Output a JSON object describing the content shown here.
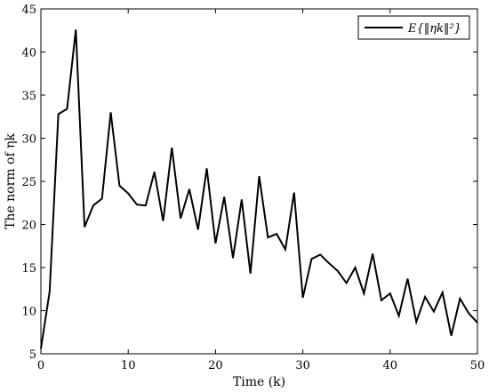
{
  "chart_data": {
    "type": "line",
    "xlabel": "Time (k)",
    "ylabel": "The norm of ηk",
    "xlim": [
      0,
      50
    ],
    "ylim": [
      5,
      45
    ],
    "xticks": [
      0,
      10,
      20,
      30,
      40,
      50
    ],
    "yticks": [
      5,
      10,
      15,
      20,
      25,
      30,
      35,
      40,
      45
    ],
    "grid": false,
    "legend_position": "top-right",
    "series": [
      {
        "name": "E{‖ηk‖²}",
        "color": "#000000",
        "x": [
          0,
          1,
          2,
          3,
          4,
          5,
          6,
          7,
          8,
          9,
          10,
          11,
          12,
          13,
          14,
          15,
          16,
          17,
          18,
          19,
          20,
          21,
          22,
          23,
          24,
          25,
          26,
          27,
          28,
          29,
          30,
          31,
          32,
          33,
          34,
          35,
          36,
          37,
          38,
          39,
          40,
          41,
          42,
          43,
          44,
          45,
          46,
          47,
          48,
          49,
          50
        ],
        "y": [
          5.6,
          12.2,
          32.8,
          33.4,
          42.6,
          19.7,
          22.2,
          23.0,
          33.0,
          24.5,
          23.6,
          22.3,
          22.2,
          26.1,
          20.4,
          28.9,
          20.7,
          24.1,
          19.4,
          26.5,
          17.8,
          23.2,
          16.1,
          22.9,
          14.3,
          25.6,
          18.5,
          18.9,
          17.1,
          23.7,
          11.5,
          16.0,
          16.5,
          15.5,
          14.6,
          13.2,
          15.0,
          12.0,
          16.6,
          11.2,
          12.0,
          9.4,
          13.7,
          8.7,
          11.6,
          9.9,
          12.1,
          7.1,
          11.4,
          9.7,
          8.6
        ]
      }
    ]
  }
}
